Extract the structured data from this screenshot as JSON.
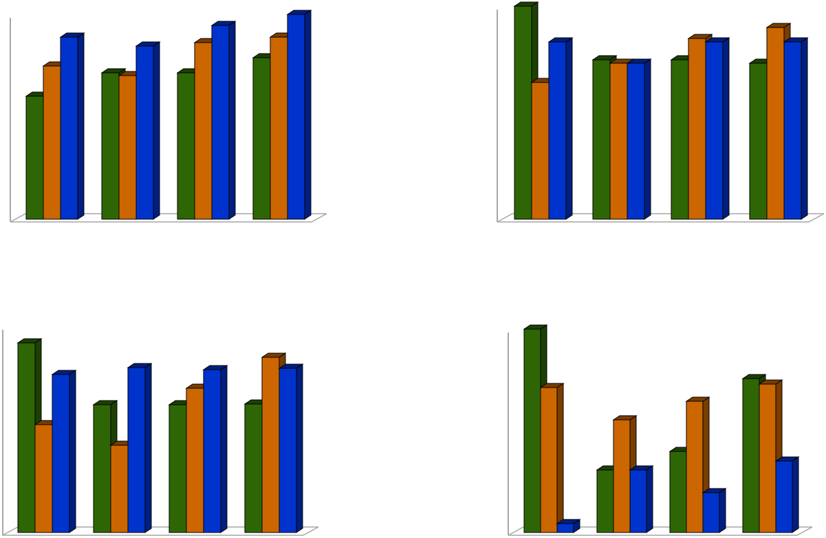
{
  "colors": {
    "green": "#2e6605",
    "green_dark": "#1c4003",
    "orange": "#cc6600",
    "orange_dark": "#7a3d00",
    "blue": "#0033cc",
    "blue_dark": "#001f80",
    "axis": "#a6a6a6",
    "outline": "#000000",
    "background": "#ffffff"
  },
  "chart_data": [
    {
      "type": "bar",
      "style": "3d-clustered-column",
      "position": "top-left",
      "categories": [
        "",
        "",
        "",
        ""
      ],
      "series": [
        {
          "color": "green",
          "values": [
            179,
            213,
            213,
            235
          ]
        },
        {
          "color": "orange",
          "values": [
            223,
            209,
            257,
            265
          ]
        },
        {
          "color": "blue",
          "values": [
            265,
            252,
            282,
            298
          ]
        }
      ],
      "ylim": [
        0,
        300
      ],
      "grid": false,
      "legend": "none"
    },
    {
      "type": "bar",
      "style": "3d-clustered-column",
      "position": "top-right",
      "categories": [
        "",
        "",
        "",
        ""
      ],
      "series": [
        {
          "color": "green",
          "values": [
            310,
            232,
            232,
            227
          ]
        },
        {
          "color": "orange",
          "values": [
            199,
            227,
            263,
            279
          ]
        },
        {
          "color": "blue",
          "values": [
            258,
            227,
            258,
            258
          ]
        }
      ],
      "ylim": [
        0,
        310
      ],
      "grid": false,
      "legend": "none"
    },
    {
      "type": "bar",
      "style": "3d-clustered-column",
      "position": "bottom-left",
      "categories": [
        "",
        "",
        "",
        ""
      ],
      "series": [
        {
          "color": "green",
          "values": [
            276,
            186,
            186,
            187
          ]
        },
        {
          "color": "orange",
          "values": [
            157,
            127,
            210,
            255
          ]
        },
        {
          "color": "blue",
          "values": [
            230,
            240,
            237,
            239
          ]
        }
      ],
      "ylim": [
        0,
        280
      ],
      "grid": false,
      "legend": "none"
    },
    {
      "type": "bar",
      "style": "3d-clustered-column",
      "position": "bottom-right",
      "categories": [
        "",
        "",
        "",
        ""
      ],
      "series": [
        {
          "color": "green",
          "values": [
            296,
            91,
            118,
            224
          ]
        },
        {
          "color": "orange",
          "values": [
            211,
            164,
            191,
            216
          ]
        },
        {
          "color": "blue",
          "values": [
            13,
            91,
            58,
            104
          ]
        }
      ],
      "ylim": [
        0,
        300
      ],
      "grid": false,
      "legend": "none"
    }
  ]
}
